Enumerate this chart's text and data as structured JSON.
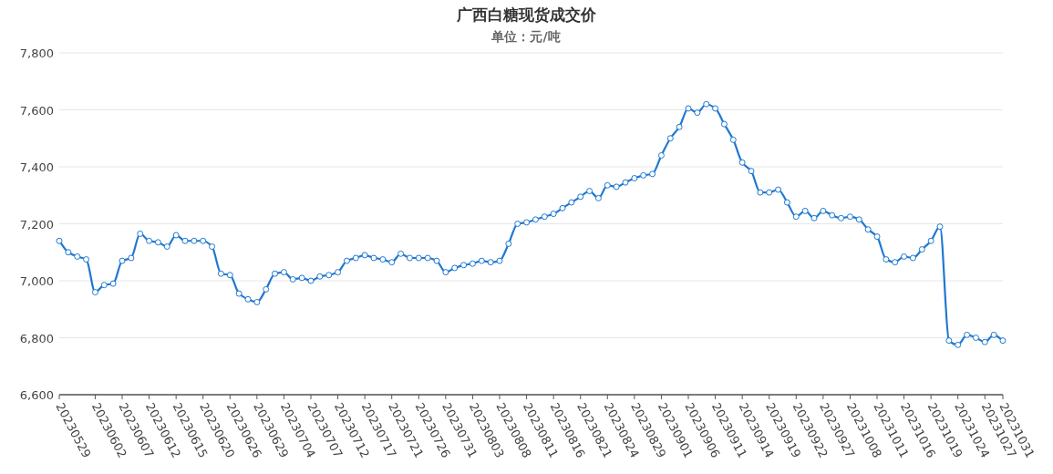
{
  "chart_data": {
    "type": "line",
    "title": "广西白糖现货成交价",
    "subtitle": "单位：元/吨",
    "categories": [
      "20230529",
      null,
      null,
      null,
      "20230602",
      null,
      null,
      "20230607",
      null,
      null,
      "20230612",
      null,
      null,
      "20230615",
      null,
      null,
      "20230620",
      null,
      null,
      "20230626",
      null,
      null,
      "20230629",
      null,
      null,
      "20230704",
      null,
      null,
      "20230707",
      null,
      null,
      "20230712",
      null,
      null,
      "20230717",
      null,
      null,
      "20230721",
      null,
      null,
      "20230726",
      null,
      null,
      "20230731",
      null,
      null,
      "20230803",
      null,
      null,
      "20230808",
      null,
      null,
      "20230811",
      null,
      null,
      "20230816",
      null,
      null,
      "20230821",
      null,
      null,
      "20230824",
      null,
      null,
      "20230829",
      null,
      null,
      "20230901",
      null,
      null,
      "20230906",
      null,
      null,
      "20230911",
      null,
      null,
      "20230914",
      null,
      null,
      "20230919",
      null,
      null,
      "20230922",
      null,
      null,
      "20230927",
      null,
      null,
      "20231008",
      null,
      null,
      "20231011",
      null,
      null,
      "20231016",
      null,
      null,
      "20231019",
      null,
      null,
      "20231024",
      null,
      null,
      "20231027",
      null,
      "20231031"
    ],
    "series": [
      {
        "color": "#1f78d1",
        "values": [
          7140,
          7100,
          7085,
          7075,
          6960,
          6985,
          6990,
          7070,
          7080,
          7165,
          7140,
          7135,
          7120,
          7160,
          7140,
          7140,
          7140,
          7120,
          7025,
          7020,
          6955,
          6935,
          6925,
          6970,
          7025,
          7030,
          7005,
          7010,
          7000,
          7015,
          7020,
          7030,
          7070,
          7080,
          7090,
          7080,
          7075,
          7065,
          7095,
          7080,
          7080,
          7080,
          7070,
          7030,
          7045,
          7055,
          7060,
          7070,
          7065,
          7070,
          7130,
          7200,
          7205,
          7215,
          7225,
          7235,
          7255,
          7275,
          7295,
          7315,
          7290,
          7335,
          7330,
          7345,
          7360,
          7370,
          7375,
          7440,
          7500,
          7540,
          7605,
          7590,
          7620,
          7605,
          7550,
          7495,
          7415,
          7385,
          7310,
          7310,
          7320,
          7275,
          7225,
          7245,
          7220,
          7245,
          7230,
          7220,
          7225,
          7215,
          7180,
          7155,
          7075,
          7065,
          7085,
          7080,
          7110,
          7140,
          7190,
          6790,
          6775,
          6810,
          6800,
          6785,
          6810,
          6790
        ]
      }
    ],
    "ylim": [
      6600,
      7800
    ],
    "yticks": [
      {
        "value": 6600,
        "label": "6,600"
      },
      {
        "value": 6800,
        "label": "6,800"
      },
      {
        "value": 7000,
        "label": "7,000"
      },
      {
        "value": 7200,
        "label": "7,200"
      },
      {
        "value": 7400,
        "label": "7,400"
      },
      {
        "value": 7600,
        "label": "7,600"
      },
      {
        "value": 7800,
        "label": "7,800"
      }
    ],
    "grid": "y",
    "marker": "circle",
    "line_style": "solid"
  }
}
